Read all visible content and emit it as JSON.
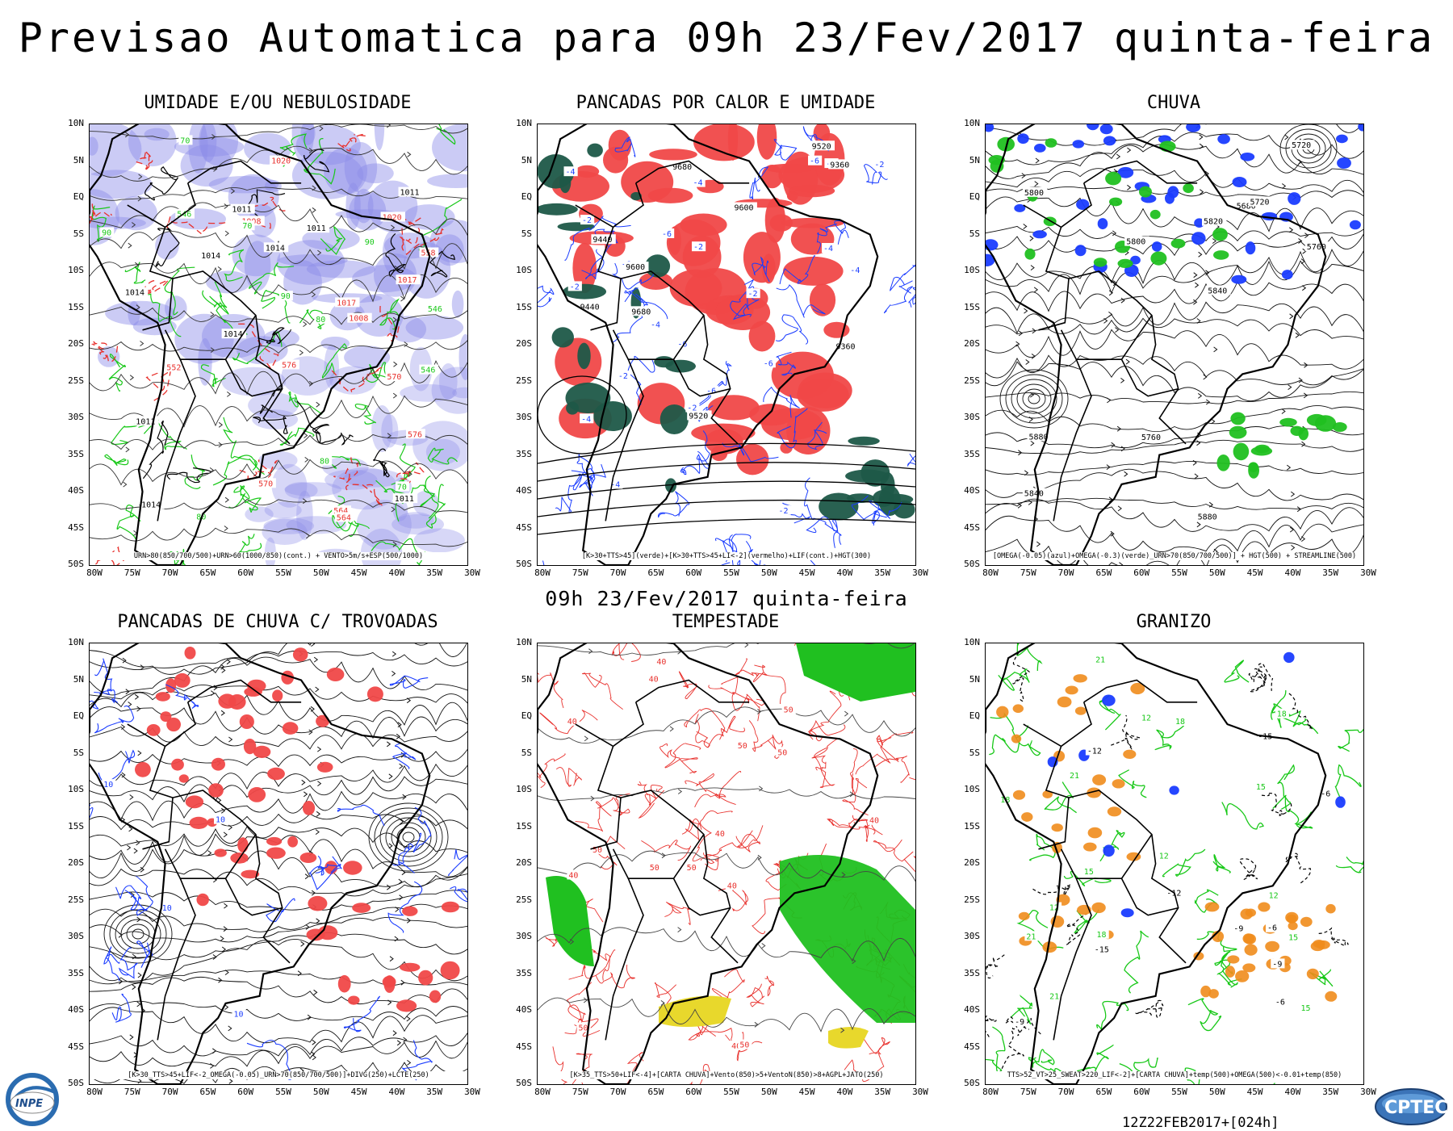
{
  "title": "Previsao Automatica  para 09h 23/Fev/2017 quinta-feira",
  "mid_date": "09h 23/Fev/2017 quinta-feira",
  "run_stamp": "12Z22FEB2017+[024h]",
  "logos": {
    "left": "INPE",
    "right": "CPTEC"
  },
  "axes": {
    "lat": [
      "10N",
      "5N",
      "EQ",
      "5S",
      "10S",
      "15S",
      "20S",
      "25S",
      "30S",
      "35S",
      "40S",
      "45S",
      "50S"
    ],
    "lon": [
      "80W",
      "75W",
      "70W",
      "65W",
      "60W",
      "55W",
      "50W",
      "45W",
      "40W",
      "35W",
      "30W"
    ]
  },
  "colors": {
    "contour_black": "#000000",
    "contour_red": "#e8302c",
    "contour_green": "#18c818",
    "contour_blue": "#1a3cff",
    "shade_blue": "#8c8ce8",
    "shade_red": "#f04848",
    "shade_darkgreen": "#1e5848",
    "shade_green": "#20c020",
    "shade_yellow": "#e8d82c",
    "contour_orange": "#f08c1c"
  },
  "panels": [
    {
      "title": "UMIDADE E/OU NEBULOSIDADE",
      "caption": "URN>80(850/700/500)+URN>60(1000/850)(cont.) + VENTO>5m/s+ESP(500/1000)",
      "labels": [
        "1011",
        "1014",
        "576",
        "570",
        "1020",
        "1017",
        "1008",
        "564",
        "558",
        "552",
        "546",
        "80",
        "90",
        "70"
      ]
    },
    {
      "title": "PANCADAS POR CALOR E UMIDADE",
      "caption": "[K>30+TTS>45](verde)+[K>30+TTS>45+LI<-2](vermelho)+LIF(cont.)+HGT(300)",
      "labels": [
        "-2",
        "-4",
        "-6",
        "9680",
        "9600",
        "9520",
        "9440",
        "9360"
      ]
    },
    {
      "title": "CHUVA",
      "caption": "[OMEGA(-0.05)(azul)+OMEGA(-0.3)(verde)_URN>70(850/700/500)] + HGT(500) + STREAMLINE(500)",
      "labels": [
        "5880",
        "5800",
        "5760",
        "5720",
        "5840",
        "5820",
        "5680"
      ]
    },
    {
      "title": "PANCADAS DE CHUVA C/ TROVOADAS",
      "caption": "[K>30_TTS>45+LIF<-2_OMEGA(-0.05)_URN>70(850/700/500)]+DIVG(250)+LCTE(250)",
      "labels": [
        "10"
      ]
    },
    {
      "title": "TEMPESTADE",
      "caption": "[K>35_TTS>50+LIF<-4]+[CARTA CHUVA]+Vento(850)>5+VentoN(850)>8+AGPL+JATO(250)",
      "labels": [
        "40",
        "50"
      ]
    },
    {
      "title": "GRANIZO",
      "caption": "TTS>52_VT>25_SWEAT>220_LIF<-2]+[CARTA CHUVA]+temp(500)+OMEGA(500)<-0.01+temp(850)",
      "labels": [
        "-6",
        "-9",
        "-12",
        "-15",
        "15",
        "18",
        "21",
        "12"
      ]
    }
  ]
}
